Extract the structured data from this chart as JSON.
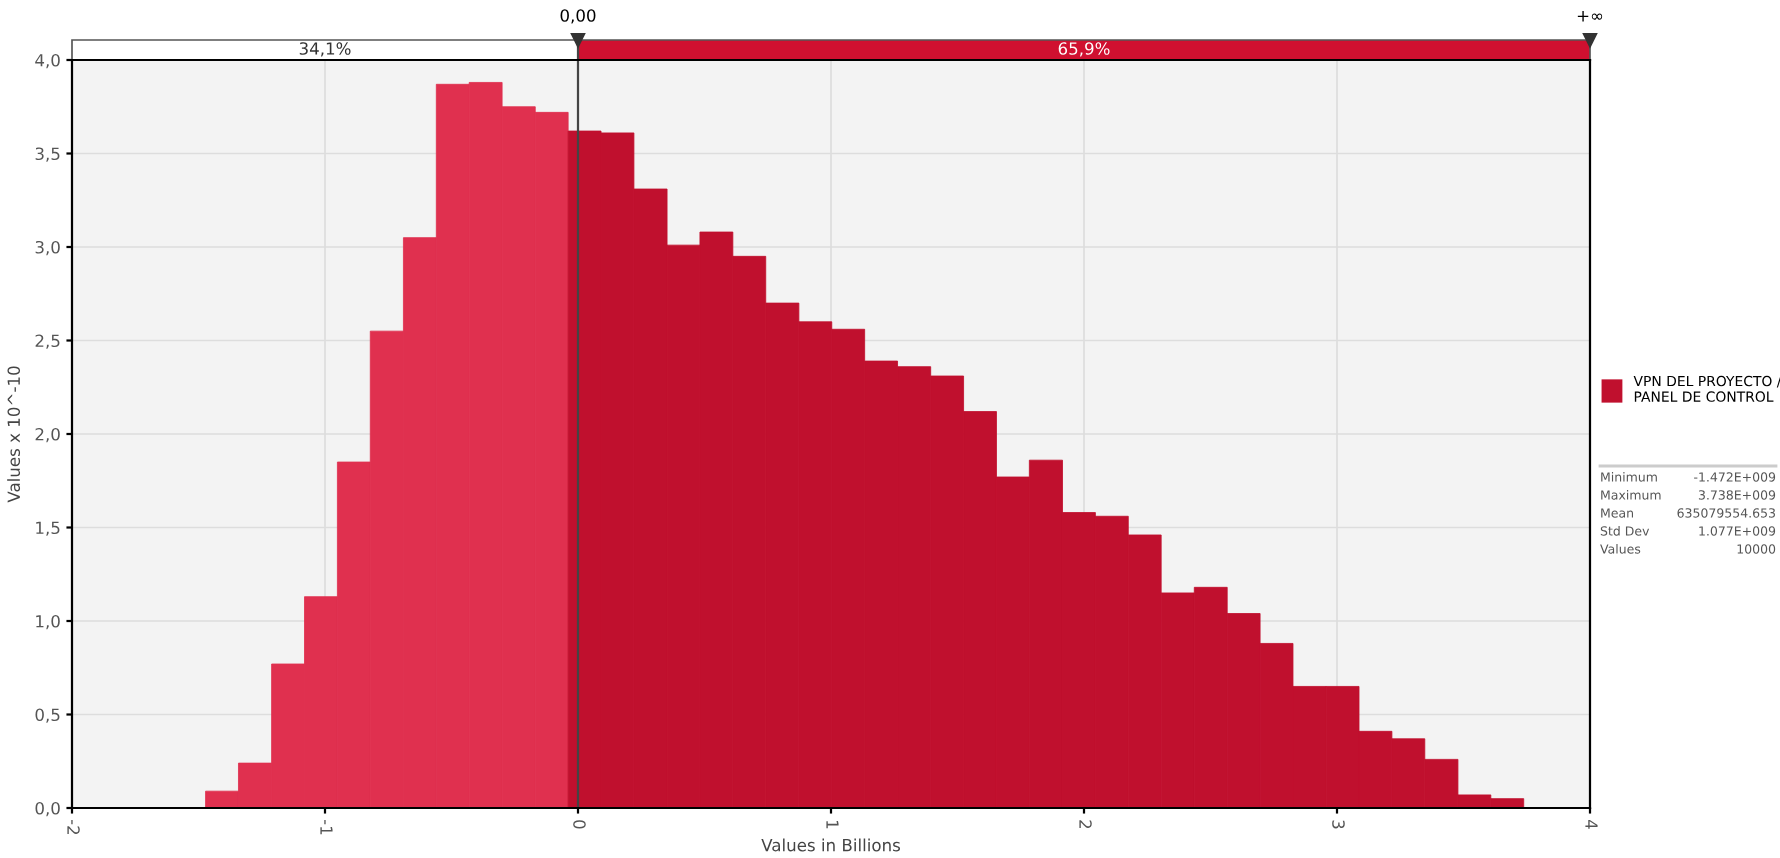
{
  "chart_data": {
    "type": "histogram",
    "xlabel": "Values in Billions",
    "ylabel": "Values x 10^-10",
    "bins": [
      -1.472,
      -1.342,
      -1.211,
      -1.081,
      -0.951,
      -0.821,
      -0.69,
      -0.56,
      -0.43,
      -0.3,
      -0.169,
      -0.039,
      0.091,
      0.221,
      0.352,
      0.482,
      0.612,
      0.742,
      0.873,
      1.003,
      1.133,
      1.263,
      1.394,
      1.524,
      1.654,
      1.784,
      1.915,
      2.045,
      2.175,
      2.305,
      2.436,
      2.566,
      2.696,
      2.826,
      2.957,
      3.087,
      3.217,
      3.347,
      3.478,
      3.608,
      3.738
    ],
    "series": [
      {
        "name": "VPN DEL PROYECTO / PANEL DE CONTROL",
        "color": "#c0102e",
        "colors": [
          "#e0304f",
          "#e0304f",
          "#e0304f",
          "#e0304f",
          "#e0304f",
          "#e0304f",
          "#e0304f",
          "#e0304f",
          "#e0304f",
          "#e0304f",
          "#e0304f",
          "#c0102e",
          "#c0102e",
          "#c0102e",
          "#c0102e",
          "#c0102e",
          "#c0102e",
          "#c0102e",
          "#c0102e",
          "#c0102e",
          "#c0102e",
          "#c0102e",
          "#c0102e",
          "#c0102e",
          "#c0102e",
          "#c0102e",
          "#c0102e",
          "#c0102e",
          "#c0102e",
          "#c0102e",
          "#c0102e",
          "#c0102e",
          "#c0102e",
          "#c0102e",
          "#c0102e",
          "#c0102e",
          "#c0102e",
          "#c0102e",
          "#c0102e",
          "#c0102e"
        ],
        "values": [
          0.09,
          0.24,
          0.77,
          1.13,
          1.85,
          2.55,
          3.05,
          3.87,
          3.88,
          3.75,
          3.72,
          3.62,
          3.61,
          3.31,
          3.01,
          3.08,
          2.95,
          2.7,
          2.6,
          2.56,
          2.39,
          2.36,
          2.31,
          2.12,
          1.77,
          1.86,
          1.58,
          1.56,
          1.46,
          1.15,
          1.18,
          1.04,
          0.88,
          0.65,
          0.65,
          0.41,
          0.37,
          0.26,
          0.07,
          0.05
        ]
      }
    ],
    "xlim": [
      -2,
      4
    ],
    "xticks": [
      -2,
      -1,
      0,
      1,
      2,
      3,
      4
    ],
    "ylim": [
      0,
      4.0
    ],
    "yticks": [
      {
        "value": 0,
        "label": "0,0"
      },
      {
        "value": 0.5,
        "label": "0,5"
      },
      {
        "value": 1,
        "label": "1,0"
      },
      {
        "value": 1.5,
        "label": "1,5"
      },
      {
        "value": 2,
        "label": "2,0"
      },
      {
        "value": 2.5,
        "label": "2,5"
      },
      {
        "value": 3,
        "label": "3,0"
      },
      {
        "value": 3.5,
        "label": "3,5"
      },
      {
        "value": 4,
        "label": "4,0"
      }
    ],
    "ref_lines": [
      {
        "axis": "x",
        "value": 0,
        "label": "0,00",
        "color": "#444444"
      }
    ],
    "annotations": [
      "34,1%",
      "65,9%",
      "+∞",
      "Minimum",
      "-1.472E+009",
      "Maximum",
      "3.738E+009",
      "Mean",
      "635079554.653",
      "Std Dev",
      "1.077E+009",
      "Values",
      "10000"
    ],
    "grid": true,
    "legend": "right"
  }
}
